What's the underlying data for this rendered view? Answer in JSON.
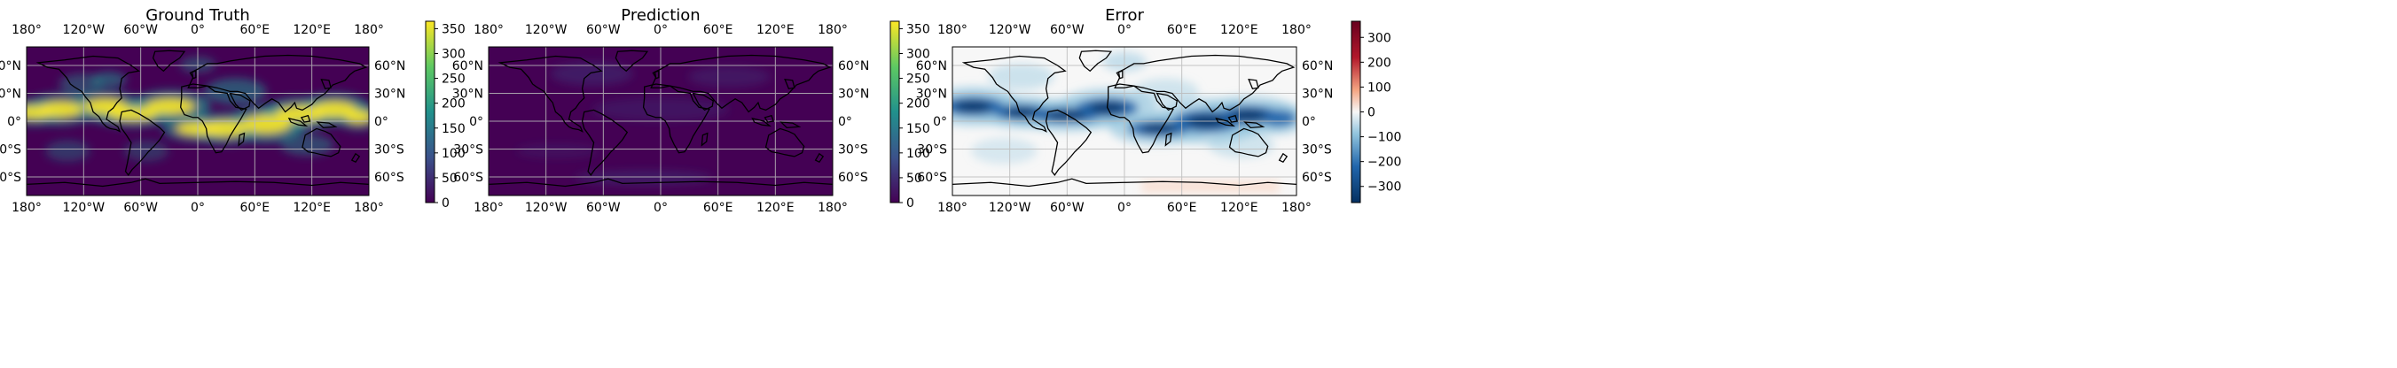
{
  "panels": [
    {
      "title": "Ground Truth",
      "kind": "viridis",
      "colorbar": {
        "ticks": [
          "0",
          "50",
          "100",
          "150",
          "200",
          "250",
          "300",
          "350"
        ],
        "vmin": 0,
        "vmax": 365
      }
    },
    {
      "title": "Prediction",
      "kind": "viridis",
      "colorbar": {
        "ticks": [
          "0",
          "50",
          "100",
          "150",
          "200",
          "250",
          "300",
          "350"
        ],
        "vmin": 0,
        "vmax": 365
      }
    },
    {
      "title": "Error",
      "kind": "rdbu",
      "colorbar": {
        "ticks": [
          "−300",
          "−200",
          "−100",
          "0",
          "100",
          "200",
          "300"
        ],
        "vmin": -365,
        "vmax": 365
      }
    }
  ],
  "lon_labels": [
    "180°",
    "120°W",
    "60°W",
    "0°",
    "60°E",
    "120°E",
    "180°"
  ],
  "lat_labels": [
    "60°N",
    "30°N",
    "0°",
    "30°S",
    "60°S"
  ],
  "colors": {
    "viridis_low": "#440154",
    "viridis_mid": "#21918c",
    "viridis_high": "#fde725",
    "rdbu_low": "#053061",
    "rdbu_mid": "#f7f7f7",
    "rdbu_high": "#67001f",
    "gridline": "#bbbbbb",
    "coastline": "#000000"
  }
}
